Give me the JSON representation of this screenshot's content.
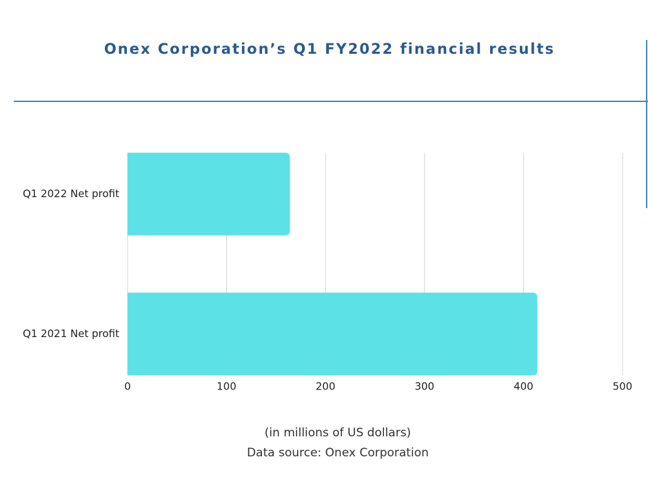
{
  "chart_data": {
    "type": "hbar",
    "title": "Onex Corporation’s Q1 FY2022 financial results",
    "categories": [
      "Q1 2022 Net profit",
      "Q1 2021 Net profit"
    ],
    "values": [
      164,
      414
    ],
    "color": "#5ce1e6",
    "xlim": [
      0,
      500
    ],
    "xticks": [
      0,
      100,
      200,
      300,
      400,
      500
    ],
    "grid": true,
    "x_label": "(in millions of US dollars)",
    "source": "Data source: Onex Corporation"
  }
}
